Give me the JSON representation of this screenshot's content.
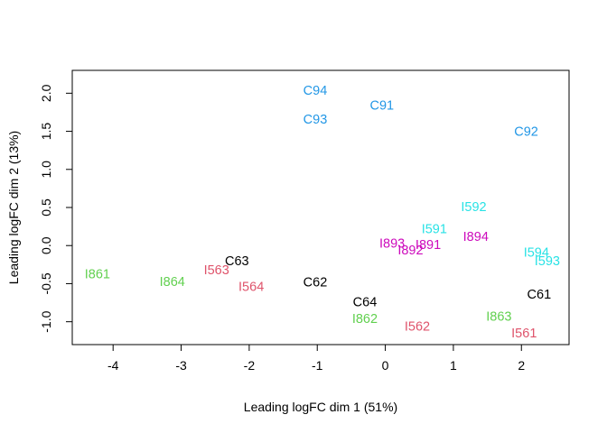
{
  "chart_data": {
    "type": "scatter",
    "title": "",
    "xlabel": "Leading logFC dim 1 (51%)",
    "ylabel": "Leading logFC dim 2 (13%)",
    "xlim": [
      -4.6,
      2.7
    ],
    "ylim": [
      -1.3,
      2.3
    ],
    "xticks": [
      -4,
      -3,
      -2,
      -1,
      0,
      1,
      2
    ],
    "yticks": [
      -1.0,
      -0.5,
      0.0,
      0.5,
      1.0,
      1.5,
      2.0
    ],
    "ytick_labels": [
      "-1.0",
      "-0.5",
      "0.0",
      "0.5",
      "1.0",
      "1.5",
      "2.0"
    ],
    "grid": false,
    "colors": {
      "C6": "#000000",
      "C9": "#2297e6",
      "I56": "#df536b",
      "I59": "#28e2e5",
      "I86": "#61d04f",
      "I89": "#cd0bbc"
    },
    "points": [
      {
        "label": "C94",
        "x": -1.03,
        "y": 2.03,
        "group": "C9"
      },
      {
        "label": "C91",
        "x": -0.05,
        "y": 1.83,
        "group": "C9"
      },
      {
        "label": "C93",
        "x": -1.03,
        "y": 1.65,
        "group": "C9"
      },
      {
        "label": "C92",
        "x": 2.07,
        "y": 1.49,
        "group": "C9"
      },
      {
        "label": "I592",
        "x": 1.3,
        "y": 0.5,
        "group": "I59"
      },
      {
        "label": "I591",
        "x": 0.72,
        "y": 0.21,
        "group": "I59"
      },
      {
        "label": "I894",
        "x": 1.33,
        "y": 0.11,
        "group": "I89"
      },
      {
        "label": "I893",
        "x": 0.1,
        "y": 0.02,
        "group": "I89"
      },
      {
        "label": "I891",
        "x": 0.63,
        "y": 0.0,
        "group": "I89"
      },
      {
        "label": "I892",
        "x": 0.37,
        "y": -0.07,
        "group": "I89"
      },
      {
        "label": "I594",
        "x": 2.22,
        "y": -0.1,
        "group": "I59"
      },
      {
        "label": "I593",
        "x": 2.38,
        "y": -0.21,
        "group": "I59"
      },
      {
        "label": "C63",
        "x": -2.18,
        "y": -0.21,
        "group": "C6"
      },
      {
        "label": "I563",
        "x": -2.48,
        "y": -0.33,
        "group": "I56"
      },
      {
        "label": "I861",
        "x": -4.23,
        "y": -0.38,
        "group": "I86"
      },
      {
        "label": "I864",
        "x": -3.13,
        "y": -0.48,
        "group": "I86"
      },
      {
        "label": "C62",
        "x": -1.03,
        "y": -0.49,
        "group": "C6"
      },
      {
        "label": "I564",
        "x": -1.97,
        "y": -0.55,
        "group": "I56"
      },
      {
        "label": "C61",
        "x": 2.26,
        "y": -0.65,
        "group": "C6"
      },
      {
        "label": "C64",
        "x": -0.3,
        "y": -0.75,
        "group": "C6"
      },
      {
        "label": "I863",
        "x": 1.67,
        "y": -0.94,
        "group": "I86"
      },
      {
        "label": "I862",
        "x": -0.3,
        "y": -0.97,
        "group": "I86"
      },
      {
        "label": "I562",
        "x": 0.47,
        "y": -1.07,
        "group": "I56"
      },
      {
        "label": "I561",
        "x": 2.04,
        "y": -1.16,
        "group": "I56"
      }
    ]
  }
}
